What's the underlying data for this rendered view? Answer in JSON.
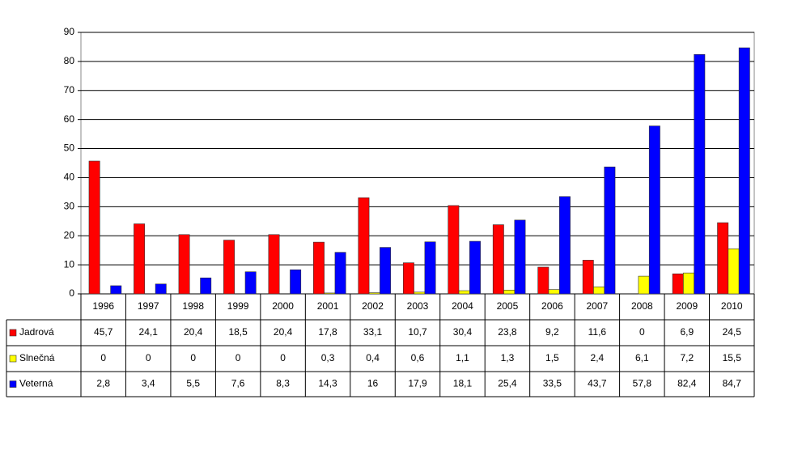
{
  "chart_data": {
    "type": "bar",
    "categories": [
      "1996",
      "1997",
      "1998",
      "1999",
      "2000",
      "2001",
      "2002",
      "2003",
      "2004",
      "2005",
      "2006",
      "2007",
      "2008",
      "2009",
      "2010"
    ],
    "series": [
      {
        "name": "Jadrová",
        "color": "#ff0000",
        "values": [
          45.7,
          24.1,
          20.4,
          18.5,
          20.4,
          17.8,
          33.1,
          10.7,
          30.4,
          23.8,
          9.2,
          11.6,
          0,
          6.9,
          24.5
        ],
        "value_labels": [
          "45,7",
          "24,1",
          "20,4",
          "18,5",
          "20,4",
          "17,8",
          "33,1",
          "10,7",
          "30,4",
          "23,8",
          "9,2",
          "11,6",
          "0",
          "6,9",
          "24,5"
        ]
      },
      {
        "name": "Slnečná",
        "color": "#ffff00",
        "values": [
          0,
          0,
          0,
          0,
          0,
          0.3,
          0.4,
          0.6,
          1.1,
          1.3,
          1.5,
          2.4,
          6.1,
          7.2,
          15.5
        ],
        "value_labels": [
          "0",
          "0",
          "0",
          "0",
          "0",
          "0,3",
          "0,4",
          "0,6",
          "1,1",
          "1,3",
          "1,5",
          "2,4",
          "6,1",
          "7,2",
          "15,5"
        ]
      },
      {
        "name": "Veterná",
        "color": "#0000ff",
        "values": [
          2.8,
          3.4,
          5.5,
          7.6,
          8.3,
          14.3,
          16,
          17.9,
          18.1,
          25.4,
          33.5,
          43.7,
          57.8,
          82.4,
          84.7
        ],
        "value_labels": [
          "2,8",
          "3,4",
          "5,5",
          "7,6",
          "8,3",
          "14,3",
          "16",
          "17,9",
          "18,1",
          "25,4",
          "33,5",
          "43,7",
          "57,8",
          "82,4",
          "84,7"
        ]
      }
    ],
    "ylim": [
      0,
      90
    ],
    "yticks": [
      0,
      10,
      20,
      30,
      40,
      50,
      60,
      70,
      80,
      90
    ],
    "grid": true,
    "legend": "table"
  }
}
